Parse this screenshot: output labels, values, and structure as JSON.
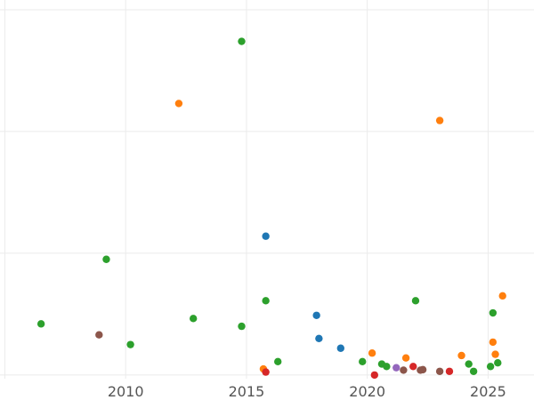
{
  "chart_data": {
    "type": "scatter",
    "title": "",
    "xlabel": "",
    "ylabel": "",
    "grid": true,
    "legend": "none",
    "xlim": [
      2004.8,
      2026.9
    ],
    "ylim": [
      -0.015,
      1.54
    ],
    "x_ticks": [
      2010,
      2015,
      2020,
      2025
    ],
    "x_tick_labels": [
      "2010",
      "2015",
      "2020",
      "2025"
    ],
    "y_gridlines": [
      0,
      0.5,
      1.0,
      1.5
    ],
    "points": [
      {
        "x": 2006.5,
        "y": 0.21,
        "color": "#2ca02c"
      },
      {
        "x": 2008.9,
        "y": 0.165,
        "color": "#8c564b"
      },
      {
        "x": 2009.2,
        "y": 0.475,
        "color": "#2ca02c"
      },
      {
        "x": 2010.2,
        "y": 0.125,
        "color": "#2ca02c"
      },
      {
        "x": 2012.2,
        "y": 1.115,
        "color": "#ff7f0e"
      },
      {
        "x": 2012.8,
        "y": 0.232,
        "color": "#2ca02c"
      },
      {
        "x": 2014.8,
        "y": 1.37,
        "color": "#2ca02c"
      },
      {
        "x": 2014.8,
        "y": 0.2,
        "color": "#2ca02c"
      },
      {
        "x": 2015.7,
        "y": 0.025,
        "color": "#ff7f0e"
      },
      {
        "x": 2015.8,
        "y": 0.57,
        "color": "#1f77b4"
      },
      {
        "x": 2015.8,
        "y": 0.305,
        "color": "#2ca02c"
      },
      {
        "x": 2015.8,
        "y": 0.012,
        "color": "#d62728"
      },
      {
        "x": 2016.3,
        "y": 0.055,
        "color": "#2ca02c"
      },
      {
        "x": 2017.9,
        "y": 0.245,
        "color": "#1f77b4"
      },
      {
        "x": 2018.0,
        "y": 0.15,
        "color": "#1f77b4"
      },
      {
        "x": 2018.9,
        "y": 0.11,
        "color": "#1f77b4"
      },
      {
        "x": 2019.8,
        "y": 0.055,
        "color": "#2ca02c"
      },
      {
        "x": 2020.2,
        "y": 0.09,
        "color": "#ff7f0e"
      },
      {
        "x": 2020.3,
        "y": 0.0,
        "color": "#d62728"
      },
      {
        "x": 2020.6,
        "y": 0.045,
        "color": "#2ca02c"
      },
      {
        "x": 2020.8,
        "y": 0.035,
        "color": "#2ca02c"
      },
      {
        "x": 2021.2,
        "y": 0.03,
        "color": "#9467bd"
      },
      {
        "x": 2021.5,
        "y": 0.02,
        "color": "#8c564b"
      },
      {
        "x": 2021.6,
        "y": 0.07,
        "color": "#ff7f0e"
      },
      {
        "x": 2021.9,
        "y": 0.035,
        "color": "#d62728"
      },
      {
        "x": 2022.0,
        "y": 0.305,
        "color": "#2ca02c"
      },
      {
        "x": 2022.2,
        "y": 0.02,
        "color": "#8c564b"
      },
      {
        "x": 2022.3,
        "y": 0.022,
        "color": "#8c564b"
      },
      {
        "x": 2023.0,
        "y": 1.045,
        "color": "#ff7f0e"
      },
      {
        "x": 2023.0,
        "y": 0.015,
        "color": "#8c564b"
      },
      {
        "x": 2023.4,
        "y": 0.015,
        "color": "#d62728"
      },
      {
        "x": 2023.9,
        "y": 0.08,
        "color": "#ff7f0e"
      },
      {
        "x": 2024.2,
        "y": 0.045,
        "color": "#2ca02c"
      },
      {
        "x": 2024.4,
        "y": 0.015,
        "color": "#2ca02c"
      },
      {
        "x": 2025.1,
        "y": 0.035,
        "color": "#2ca02c"
      },
      {
        "x": 2025.2,
        "y": 0.255,
        "color": "#2ca02c"
      },
      {
        "x": 2025.2,
        "y": 0.135,
        "color": "#ff7f0e"
      },
      {
        "x": 2025.3,
        "y": 0.085,
        "color": "#ff7f0e"
      },
      {
        "x": 2025.4,
        "y": 0.05,
        "color": "#2ca02c"
      },
      {
        "x": 2025.6,
        "y": 0.325,
        "color": "#ff7f0e"
      }
    ]
  }
}
